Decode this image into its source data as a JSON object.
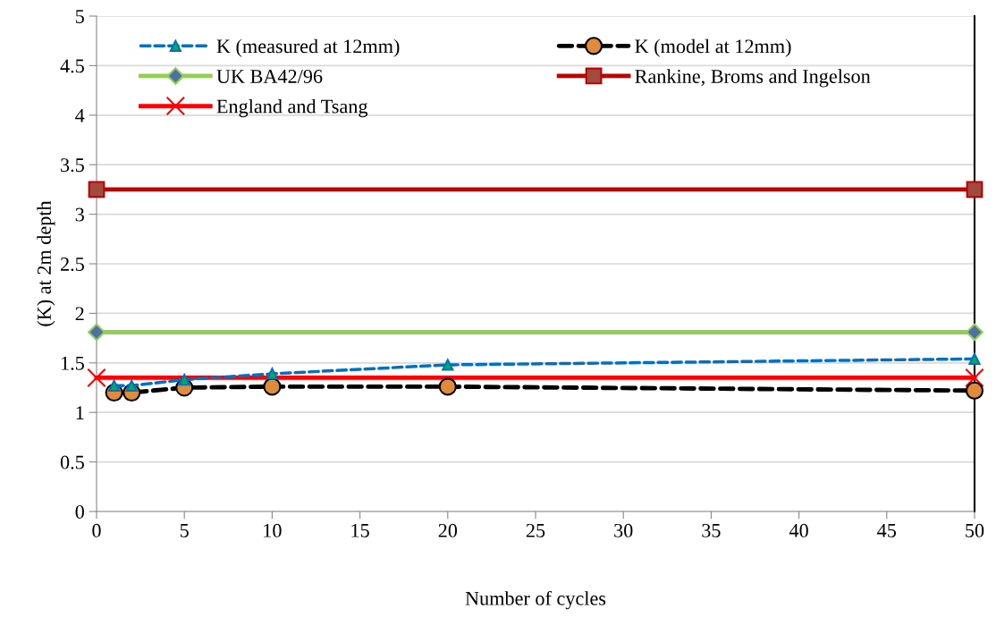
{
  "chart_data": {
    "type": "line",
    "xlabel": "Number of cycles",
    "ylabel": "(K) at 2m depth",
    "xlim": [
      0,
      50
    ],
    "xticks": [
      0,
      5,
      10,
      15,
      20,
      25,
      30,
      35,
      40,
      45,
      50
    ],
    "ylim": [
      0,
      5
    ],
    "yticks": [
      0,
      0.5,
      1,
      1.5,
      2,
      2.5,
      3,
      3.5,
      4,
      4.5,
      5
    ],
    "grid": "y",
    "legend": "top",
    "series": [
      {
        "name": "K (measured at 12mm)",
        "color": "#0070c0",
        "x": [
          1,
          2,
          5,
          10,
          20,
          50
        ],
        "values": [
          1.27,
          1.27,
          1.33,
          1.39,
          1.48,
          1.54
        ],
        "marker": "triangle",
        "line_style": "dashed"
      },
      {
        "name": "K (model at 12mm)",
        "color": "#000000",
        "x": [
          1,
          2,
          5,
          10,
          20,
          50
        ],
        "values": [
          1.2,
          1.2,
          1.25,
          1.26,
          1.26,
          1.22
        ],
        "marker": "circle",
        "line_style": "dashed"
      },
      {
        "name": "UK BA42/96",
        "color": "#92d050",
        "x": [
          0,
          50
        ],
        "values": [
          1.81,
          1.81
        ],
        "marker": "diamond",
        "line_style": "solid"
      },
      {
        "name": "Rankine, Broms and Ingelson",
        "color": "#c00000",
        "x": [
          0,
          50
        ],
        "values": [
          3.25,
          3.25
        ],
        "marker": "square",
        "line_style": "solid"
      },
      {
        "name": "England and Tsang",
        "color": "#ff0000",
        "x": [
          0,
          50
        ],
        "values": [
          1.35,
          1.35
        ],
        "marker": "cross",
        "line_style": "solid"
      }
    ]
  }
}
